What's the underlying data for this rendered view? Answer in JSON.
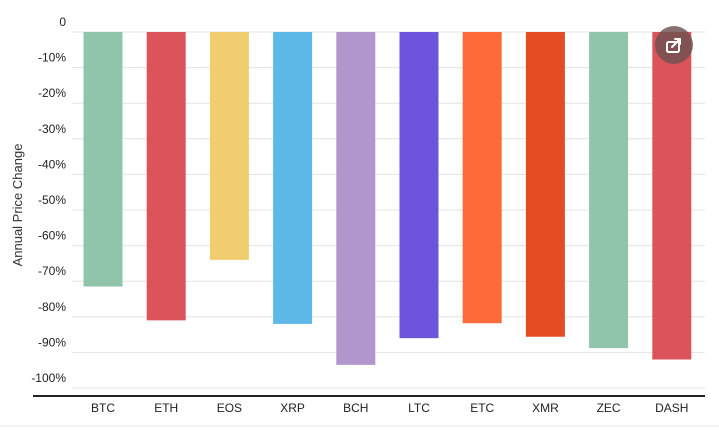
{
  "chart_data": {
    "type": "bar",
    "title": "",
    "xlabel": "",
    "ylabel": "Annual Price Change",
    "ylim": [
      -100,
      0
    ],
    "yticks": [
      "0",
      "-10%",
      "-20%",
      "-30%",
      "-40%",
      "-50%",
      "-60%",
      "-70%",
      "-80%",
      "-90%",
      "-100%"
    ],
    "yticks_values": [
      0,
      -10,
      -20,
      -30,
      -40,
      -50,
      -60,
      -70,
      -80,
      -90,
      -100
    ],
    "grid": true,
    "legend": "none",
    "categories": [
      "BTC",
      "ETH",
      "EOS",
      "XRP",
      "BCH",
      "LTC",
      "ETC",
      "XMR",
      "ZEC",
      "DASH"
    ],
    "values": [
      -71.5,
      -81,
      -64,
      -82,
      -93.5,
      -86,
      -81.8,
      -85.6,
      -88.8,
      -92
    ],
    "colors": [
      "#90c5ab",
      "#dc5459",
      "#f0cd6e",
      "#5eb8e7",
      "#b196cd",
      "#6c54dc",
      "#ff6a3b",
      "#e44d23",
      "#90c5ab",
      "#dc5459"
    ]
  },
  "toolbar": {
    "share_icon": "share-icon"
  }
}
